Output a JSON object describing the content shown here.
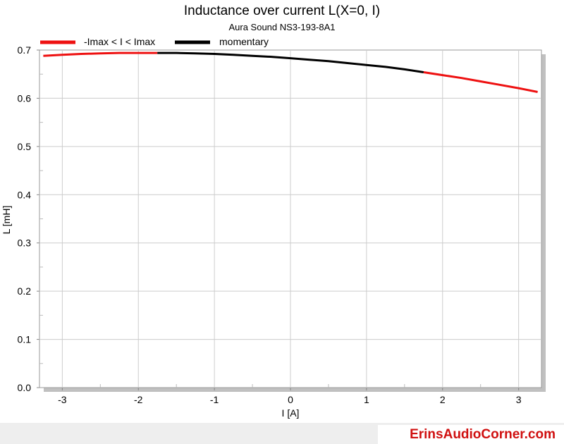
{
  "chart_data": {
    "type": "line",
    "title": "Inductance over current L(X=0, I)",
    "subtitle": "Aura Sound NS3-193-8A1",
    "xlabel": "I [A]",
    "ylabel": "L [mH]",
    "xlim": [
      -3.3,
      3.3
    ],
    "ylim": [
      0.0,
      0.7
    ],
    "x_ticks": [
      -3,
      -2,
      -1,
      0,
      1,
      2,
      3
    ],
    "x_tick_labels": [
      "-3",
      "-2",
      "-1",
      "0",
      "1",
      "2",
      "3"
    ],
    "y_ticks": [
      0.0,
      0.1,
      0.2,
      0.3,
      0.4,
      0.5,
      0.6,
      0.7
    ],
    "y_tick_labels": [
      "0.0",
      "0.1",
      "0.2",
      "0.3",
      "0.4",
      "0.5",
      "0.6",
      "0.7"
    ],
    "grid": true,
    "legend_position": "top-left",
    "series": [
      {
        "name": "-Imax < I < Imax",
        "color": "#ee1111",
        "segments": [
          {
            "x": [
              -3.25,
              -3.0,
              -2.75,
              -2.5,
              -2.25,
              -2.0,
              -1.75
            ],
            "y": [
              0.688,
              0.69,
              0.692,
              0.693,
              0.694,
              0.694,
              0.694
            ]
          },
          {
            "x": [
              1.75,
              2.0,
              2.25,
              2.5,
              2.75,
              3.0,
              3.25
            ],
            "y": [
              0.654,
              0.648,
              0.642,
              0.635,
              0.628,
              0.621,
              0.613
            ]
          }
        ]
      },
      {
        "name": "momentary",
        "color": "#000000",
        "segments": [
          {
            "x": [
              -1.75,
              -1.5,
              -1.25,
              -1.0,
              -0.75,
              -0.5,
              -0.25,
              0.0,
              0.25,
              0.5,
              0.75,
              1.0,
              1.25,
              1.5,
              1.75
            ],
            "y": [
              0.694,
              0.694,
              0.693,
              0.692,
              0.69,
              0.688,
              0.686,
              0.683,
              0.68,
              0.677,
              0.673,
              0.669,
              0.665,
              0.66,
              0.654
            ]
          }
        ]
      }
    ]
  },
  "footer": {
    "brand": "ErinsAudioCorner.com"
  }
}
